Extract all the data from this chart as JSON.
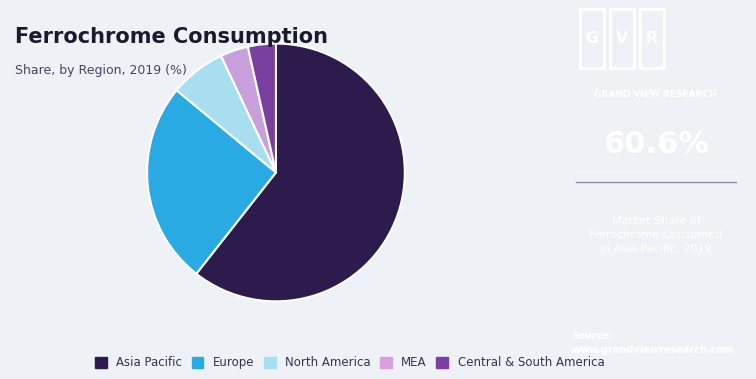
{
  "title": "Ferrochrome Consumption",
  "subtitle": "Share, by Region, 2019 (%)",
  "labels": [
    "Asia Pacific",
    "Europe",
    "North America",
    "MEA",
    "Central & South America"
  ],
  "values": [
    60.6,
    25.4,
    7.0,
    3.5,
    3.5
  ],
  "colors": [
    "#2d1b4e",
    "#29aae2",
    "#a8dff0",
    "#c9a0dc",
    "#7b3fa0"
  ],
  "legend_colors": [
    "#2d1b4e",
    "#29aae2",
    "#a8dff0",
    "#d8a0dc",
    "#7b3fa0"
  ],
  "bg_color": "#eef2f7",
  "right_panel_color": "#2d2b55",
  "highlight_value": "60.6%",
  "highlight_text": "Market Share of\nFerrochrome Consumed\nin Asia Pacific, 2019",
  "source_text": "Source:\nwww.grandviewresearch.com",
  "start_angle": 90
}
